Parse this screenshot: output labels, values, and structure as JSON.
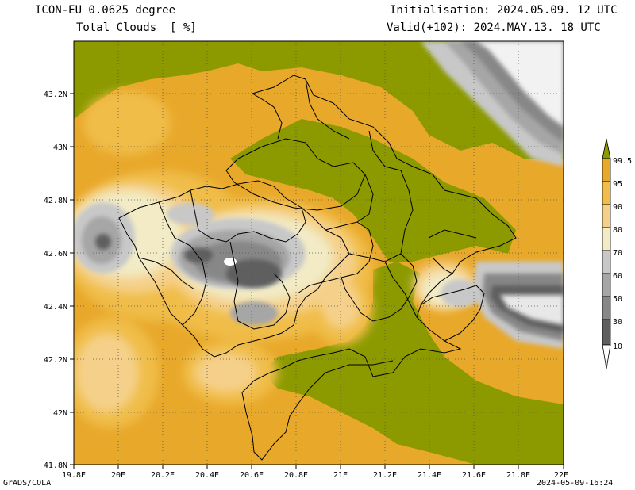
{
  "header": {
    "model": "ICON-EU 0.0625 degree",
    "field": "Total Clouds  [ %]",
    "init": "Initialisation: 2024.05.09. 12 UTC",
    "valid": "Valid(+102): 2024.MAY.13. 18 UTC"
  },
  "axes": {
    "lon_ticks": [
      "19.8E",
      "20E",
      "20.2E",
      "20.4E",
      "20.6E",
      "20.8E",
      "21E",
      "21.2E",
      "21.4E",
      "21.6E",
      "21.8E",
      "22E"
    ],
    "lat_ticks": [
      "43.2N",
      "43N",
      "42.8N",
      "42.6N",
      "42.4N",
      "42.2N",
      "42N",
      "41.8N"
    ]
  },
  "colorbar": {
    "labels": [
      "99.5",
      "95",
      "90",
      "80",
      "70",
      "60",
      "50",
      "30",
      "10"
    ],
    "colors": [
      "#8c9a00",
      "#e8a82a",
      "#f0bd4a",
      "#f5d08a",
      "#f2ebc6",
      "#c8c8c8",
      "#a6a6a6",
      "#878787",
      "#5f5f5f",
      "#ffffff"
    ]
  },
  "footer": {
    "credit": "GrADS/COLA",
    "timestamp": "2024-05-09-16:24"
  }
}
